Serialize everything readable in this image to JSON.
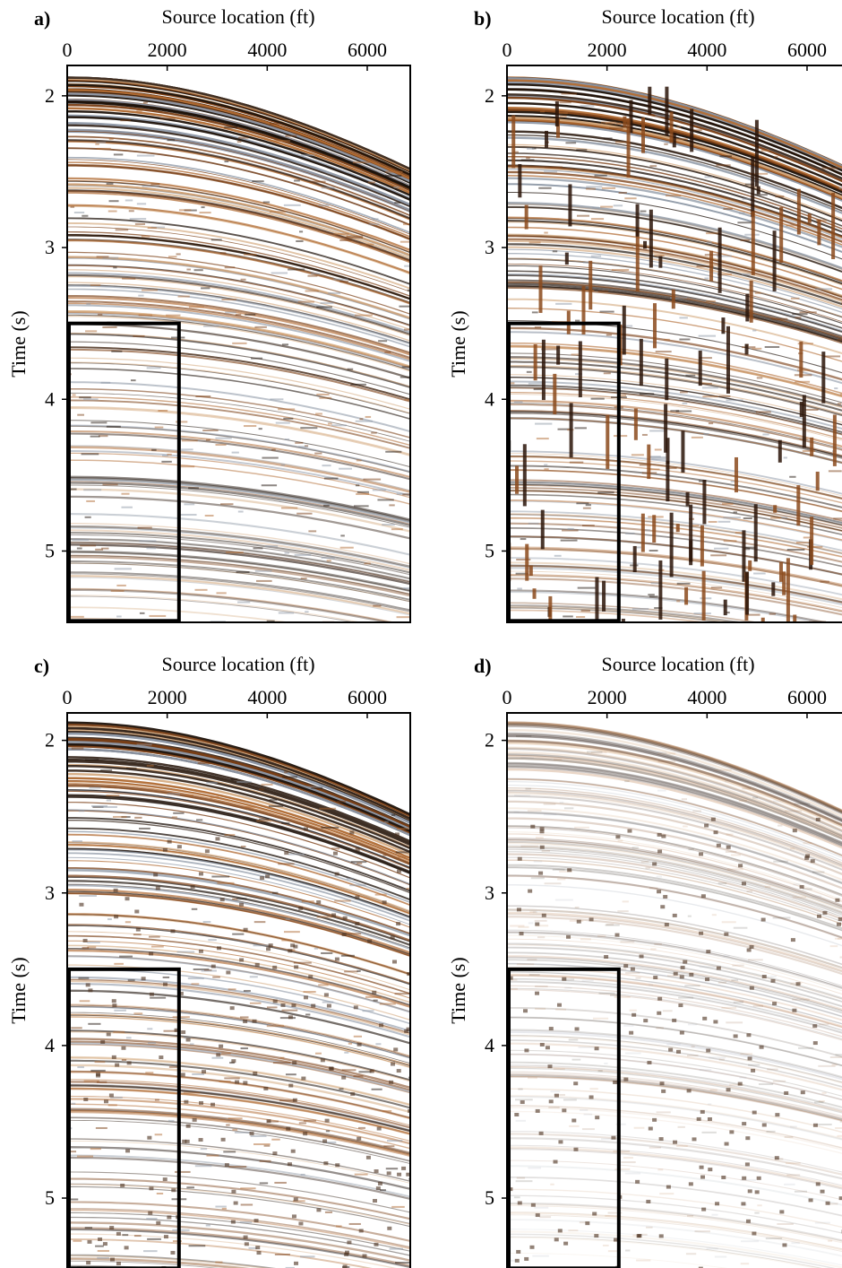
{
  "chart_data": [
    {
      "type": "image",
      "panel_label": "a)",
      "xlabel": "Source location (ft)",
      "ylabel": "Time (s)",
      "xlim": [
        0,
        6860
      ],
      "xticks": [
        0,
        2000,
        4000,
        6000
      ],
      "ylim": [
        5.47,
        1.8
      ],
      "yticks": [
        2,
        3,
        4,
        5
      ],
      "highlight_box": {
        "x": [
          0,
          2200
        ],
        "y": [
          3.5,
          5.46
        ]
      },
      "style": "clean"
    },
    {
      "type": "image",
      "panel_label": "b)",
      "xlabel": "Source location (ft)",
      "ylabel": "Time (s)",
      "xlim": [
        0,
        6860
      ],
      "xticks": [
        0,
        2000,
        4000,
        6000
      ],
      "ylim": [
        5.47,
        1.8
      ],
      "yticks": [
        2,
        3,
        4,
        5
      ],
      "highlight_box": {
        "x": [
          0,
          2200
        ],
        "y": [
          3.5,
          5.46
        ]
      },
      "style": "noisy"
    },
    {
      "type": "image",
      "panel_label": "c)",
      "xlabel": "Source location (ft)",
      "ylabel": "Time (s)",
      "xlim": [
        0,
        6860
      ],
      "xticks": [
        0,
        2000,
        4000,
        6000
      ],
      "ylim": [
        5.47,
        1.82
      ],
      "yticks": [
        2,
        3,
        4,
        5
      ],
      "highlight_box": {
        "x": [
          0,
          2200
        ],
        "y": [
          3.5,
          5.46
        ]
      },
      "style": "denoised"
    },
    {
      "type": "image",
      "panel_label": "d)",
      "xlabel": "Source location (ft)",
      "ylabel": "Time (s)",
      "xlim": [
        0,
        6860
      ],
      "xticks": [
        0,
        2000,
        4000,
        6000
      ],
      "ylim": [
        5.47,
        1.82
      ],
      "yticks": [
        2,
        3,
        4,
        5
      ],
      "highlight_box": {
        "x": [
          0,
          2200
        ],
        "y": [
          3.5,
          5.46
        ]
      },
      "style": "residual"
    }
  ]
}
